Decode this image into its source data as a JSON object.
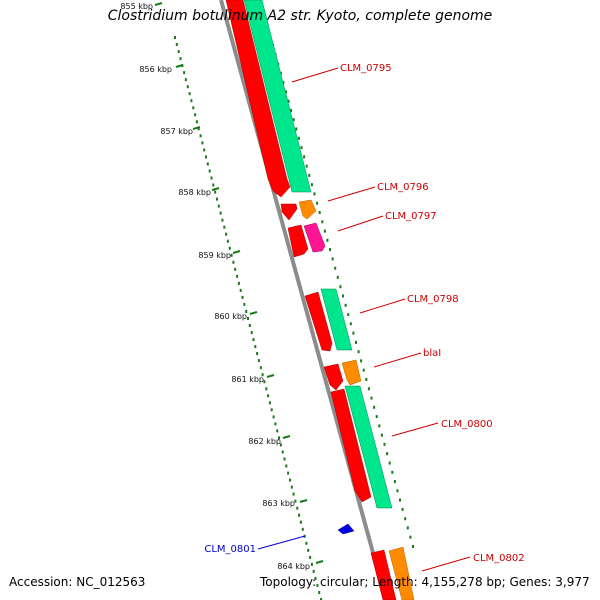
{
  "title": "Clostridium botulinum A2 str. Kyoto, complete genome",
  "footer": {
    "accession": "Accession: NC_012563",
    "summary": "Topology: circular; Length: 4,155,278 bp; Genes: 3,977"
  },
  "colors": {
    "backbone": "#8c8c8c",
    "tick": "#1a7a1a",
    "cds": "#ff0000",
    "rna": "#00e68c",
    "orange_feature": "#ff8c00",
    "pink_feature": "#ff1493",
    "blue_feature": "#0000e0",
    "label_red": "#cc0000",
    "label_blue": "#0000cc"
  },
  "ticks": [
    "855 kbp",
    "856 kbp",
    "857 kbp",
    "858 kbp",
    "859 kbp",
    "860 kbp",
    "861 kbp",
    "862 kbp",
    "863 kbp",
    "864 kbp"
  ],
  "features": [
    {
      "name": "CLM_0795",
      "color": "red",
      "strand": "+"
    },
    {
      "name": "CLM_0796",
      "color": "red",
      "strand": "+"
    },
    {
      "name": "CLM_0797",
      "color": "red",
      "strand": "+"
    },
    {
      "name": "CLM_0798",
      "color": "red",
      "strand": "+"
    },
    {
      "name": "blaI",
      "color": "red",
      "strand": "+"
    },
    {
      "name": "CLM_0800",
      "color": "red",
      "strand": "+"
    },
    {
      "name": "CLM_0801",
      "color": "blue",
      "strand": "-"
    },
    {
      "name": "CLM_0802",
      "color": "red",
      "strand": "+"
    }
  ]
}
